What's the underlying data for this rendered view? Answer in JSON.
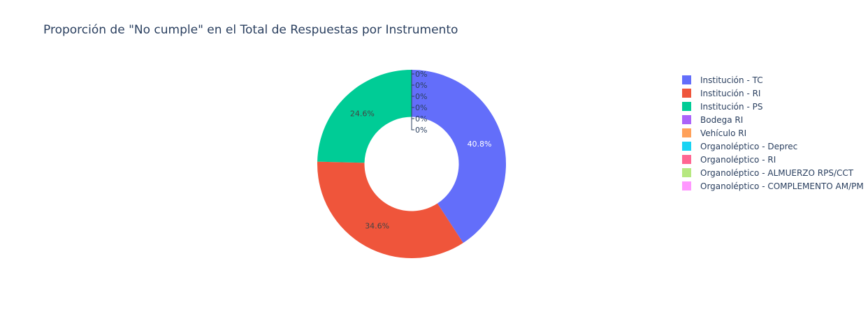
{
  "chart_data": {
    "type": "pie",
    "hole": 0.5,
    "title": "Proporción de \"No cumple\" en el Total de Respuestas por Instrumento",
    "labels": [
      "Institución - TC",
      "Institución - RI",
      "Institución - PS",
      "Bodega RI",
      "Vehículo RI",
      "Organoléptico - Deprec",
      "Organoléptico - RI",
      "Organoléptico - ALMUERZO RPS/CCT",
      "Organoléptico - COMPLEMENTO AM/PM"
    ],
    "values": [
      40.8,
      34.6,
      24.6,
      0,
      0,
      0,
      0,
      0,
      0
    ],
    "text_labels": [
      "40.8%",
      "34.6%",
      "24.6%",
      "0%",
      "0%",
      "0%",
      "0%",
      "0%",
      "0%"
    ],
    "colors": [
      "#636efa",
      "#ef553b",
      "#00cc96",
      "#ab63fa",
      "#ffa15a",
      "#19d3f3",
      "#ff6692",
      "#b6e880",
      "#ff97ff"
    ],
    "legend_placement": "right"
  }
}
